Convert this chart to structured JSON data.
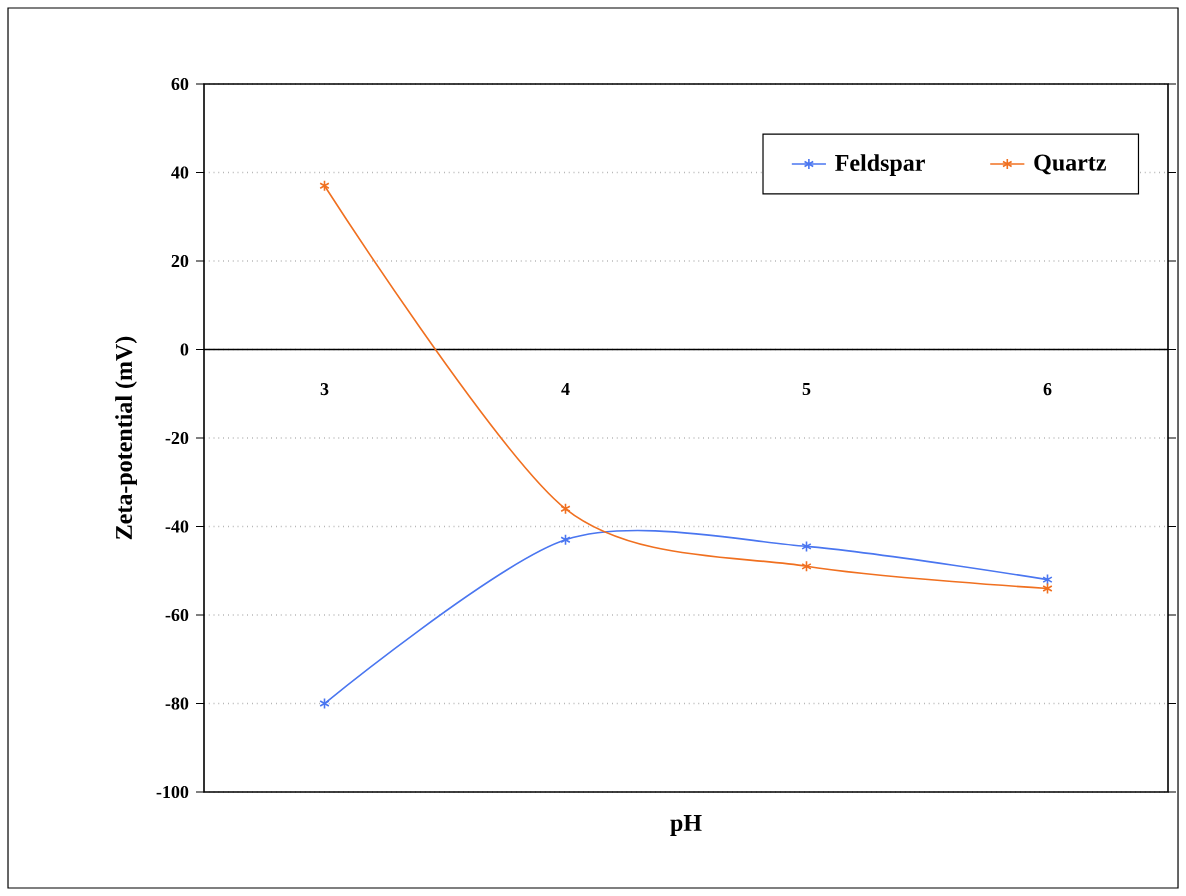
{
  "chart_data": {
    "type": "line",
    "xlabel": "pH",
    "ylabel": "Zeta-potential (mV)",
    "x": [
      3,
      4,
      5,
      6
    ],
    "series": [
      {
        "name": "Feldspar",
        "color": "#4a76f0",
        "values": [
          -80,
          -43,
          -44.5,
          -52
        ]
      },
      {
        "name": "Quartz",
        "color": "#f07020",
        "values": [
          37,
          -36,
          -49,
          -54
        ]
      }
    ],
    "xlim": [
      2.5,
      6.5
    ],
    "xticks": [
      3,
      4,
      5,
      6
    ],
    "ylim": [
      -100,
      60
    ],
    "yticks": [
      -100,
      -80,
      -60,
      -40,
      -20,
      0,
      20,
      40,
      60
    ],
    "grid": "y",
    "legend": "top right",
    "marker": "cross",
    "line_style": "solid"
  }
}
